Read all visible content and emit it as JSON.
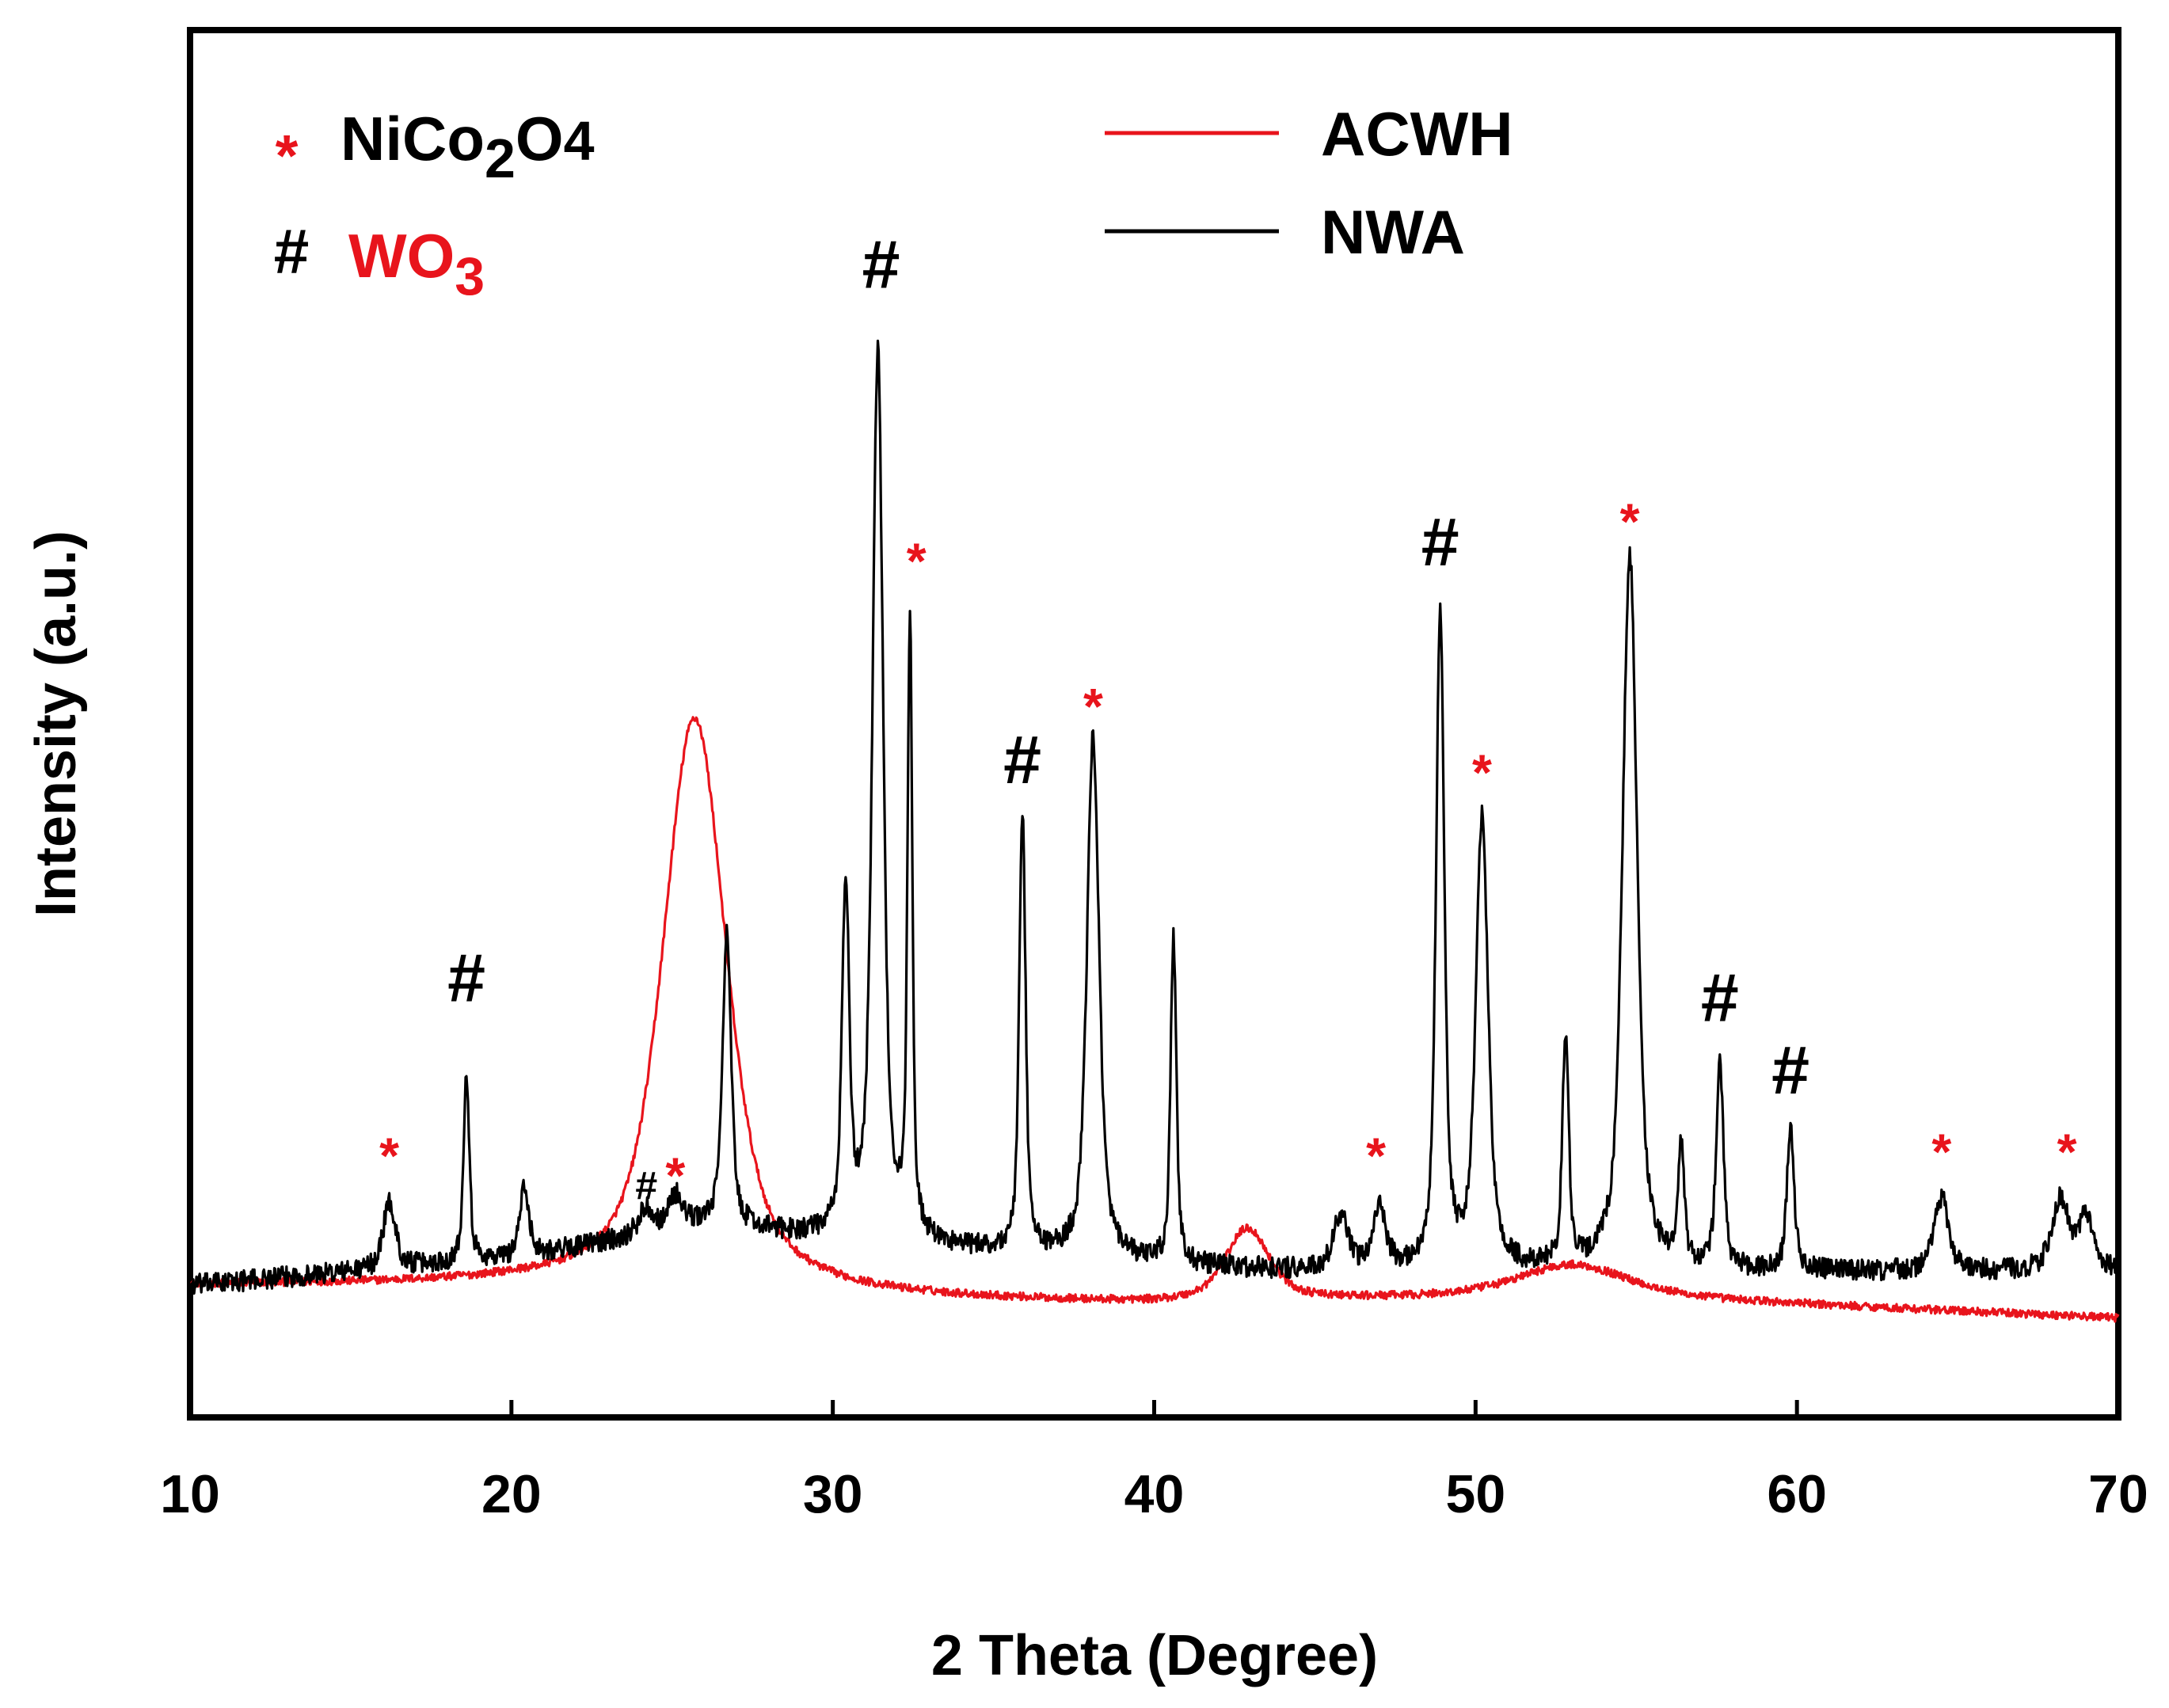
{
  "chart_data": {
    "type": "line",
    "xlabel": "2 Theta (Degree)",
    "ylabel": "Intensity (a.u.)",
    "xlim": [
      10,
      70
    ],
    "ylim": [
      -0.9,
      9.6
    ],
    "x_ticks": [
      10,
      20,
      30,
      40,
      50,
      60,
      70
    ],
    "y_ticks_shown": false,
    "legend": {
      "placement": "top-center",
      "entries": [
        {
          "name": "ACWH",
          "color": "#e8141c"
        },
        {
          "name": "NWA",
          "color": "#000000"
        }
      ]
    },
    "phase_key": {
      "placement": "top-left",
      "entries": [
        {
          "symbol": "*",
          "symbol_color": "#e8141c",
          "label": "NiCo",
          "sub1": "2",
          "label2": "O",
          "sub2": "4",
          "label_color": "#000000"
        },
        {
          "symbol": "#",
          "symbol_color": "#000000",
          "label": "WO",
          "sub1": "3",
          "label2": "",
          "sub2": "",
          "label_color": "#e8141c"
        }
      ]
    },
    "series": [
      {
        "name": "NWA",
        "color": "#000000",
        "baseline": [
          [
            10,
            0.1
          ],
          [
            20,
            0.3
          ],
          [
            26,
            0.55
          ],
          [
            30,
            0.45
          ],
          [
            40,
            0.25
          ],
          [
            45,
            0.2
          ],
          [
            50,
            0.2
          ],
          [
            70,
            0.2
          ]
        ],
        "peaks": [
          {
            "x": 16.2,
            "h": 0.5,
            "w": 0.25
          },
          {
            "x": 18.6,
            "h": 1.45,
            "w": 0.12
          },
          {
            "x": 20.4,
            "h": 0.5,
            "w": 0.2
          },
          {
            "x": 24.2,
            "h": 0.2,
            "w": 0.3
          },
          {
            "x": 25.1,
            "h": 0.25,
            "w": 0.3
          },
          {
            "x": 26.7,
            "h": 2.2,
            "w": 0.18
          },
          {
            "x": 30.4,
            "h": 2.6,
            "w": 0.15
          },
          {
            "x": 31.4,
            "h": 6.7,
            "w": 0.22
          },
          {
            "x": 32.4,
            "h": 4.6,
            "w": 0.1
          },
          {
            "x": 35.9,
            "h": 3.3,
            "w": 0.13
          },
          {
            "x": 38.1,
            "h": 3.95,
            "w": 0.25
          },
          {
            "x": 40.6,
            "h": 2.45,
            "w": 0.12
          },
          {
            "x": 45.8,
            "h": 0.4,
            "w": 0.3
          },
          {
            "x": 47.0,
            "h": 0.45,
            "w": 0.28
          },
          {
            "x": 48.9,
            "h": 4.95,
            "w": 0.17
          },
          {
            "x": 50.2,
            "h": 3.4,
            "w": 0.25
          },
          {
            "x": 52.8,
            "h": 1.75,
            "w": 0.13
          },
          {
            "x": 54.8,
            "h": 5.4,
            "w": 0.3
          },
          {
            "x": 56.4,
            "h": 0.9,
            "w": 0.12
          },
          {
            "x": 57.6,
            "h": 1.55,
            "w": 0.15
          },
          {
            "x": 59.8,
            "h": 1.05,
            "w": 0.15
          },
          {
            "x": 64.5,
            "h": 0.55,
            "w": 0.3
          },
          {
            "x": 68.2,
            "h": 0.55,
            "w": 0.35
          },
          {
            "x": 69.0,
            "h": 0.4,
            "w": 0.3
          }
        ],
        "noise": 0.08
      },
      {
        "name": "ACWH",
        "color": "#e8141c",
        "baseline": [
          [
            10,
            0.1
          ],
          [
            20,
            0.1
          ],
          [
            30,
            0.0
          ],
          [
            40,
            -0.05
          ],
          [
            50,
            0.0
          ],
          [
            55,
            0.0
          ],
          [
            70,
            -0.15
          ]
        ],
        "peaks": [
          {
            "x": 25.7,
            "h": 4.35,
            "w": 1.3
          },
          {
            "x": 42.9,
            "h": 0.55,
            "w": 0.9
          },
          {
            "x": 53.0,
            "h": 0.25,
            "w": 2.2
          }
        ],
        "noise": 0.03
      }
    ],
    "annotations": [
      {
        "symbol": "#",
        "x": 18.6,
        "y": 2.25,
        "color": "#000000",
        "size": "large"
      },
      {
        "symbol": "*",
        "x": 16.2,
        "y": 0.95,
        "color": "#e8141c",
        "size": "large"
      },
      {
        "symbol": "#",
        "x": 24.2,
        "y": 0.75,
        "color": "#000000",
        "size": "small"
      },
      {
        "symbol": "*",
        "x": 25.1,
        "y": 0.8,
        "color": "#e8141c",
        "size": "large"
      },
      {
        "symbol": "#",
        "x": 31.5,
        "y": 7.65,
        "color": "#000000",
        "size": "large"
      },
      {
        "symbol": "*",
        "x": 32.6,
        "y": 5.45,
        "color": "#e8141c",
        "size": "large"
      },
      {
        "symbol": "#",
        "x": 35.9,
        "y": 3.9,
        "color": "#000000",
        "size": "large"
      },
      {
        "symbol": "*",
        "x": 38.1,
        "y": 4.35,
        "color": "#e8141c",
        "size": "large"
      },
      {
        "symbol": "#",
        "x": 48.9,
        "y": 5.55,
        "color": "#000000",
        "size": "large"
      },
      {
        "symbol": "*",
        "x": 50.2,
        "y": 3.85,
        "color": "#e8141c",
        "size": "large"
      },
      {
        "symbol": "*",
        "x": 54.8,
        "y": 5.75,
        "color": "#e8141c",
        "size": "large"
      },
      {
        "symbol": "#",
        "x": 57.6,
        "y": 2.1,
        "color": "#000000",
        "size": "large"
      },
      {
        "symbol": "#",
        "x": 59.8,
        "y": 1.55,
        "color": "#000000",
        "size": "large"
      },
      {
        "symbol": "*",
        "x": 46.9,
        "y": 0.95,
        "color": "#e8141c",
        "size": "large"
      },
      {
        "symbol": "*",
        "x": 64.5,
        "y": 0.98,
        "color": "#e8141c",
        "size": "large"
      },
      {
        "symbol": "*",
        "x": 68.4,
        "y": 0.98,
        "color": "#e8141c",
        "size": "large"
      }
    ]
  }
}
